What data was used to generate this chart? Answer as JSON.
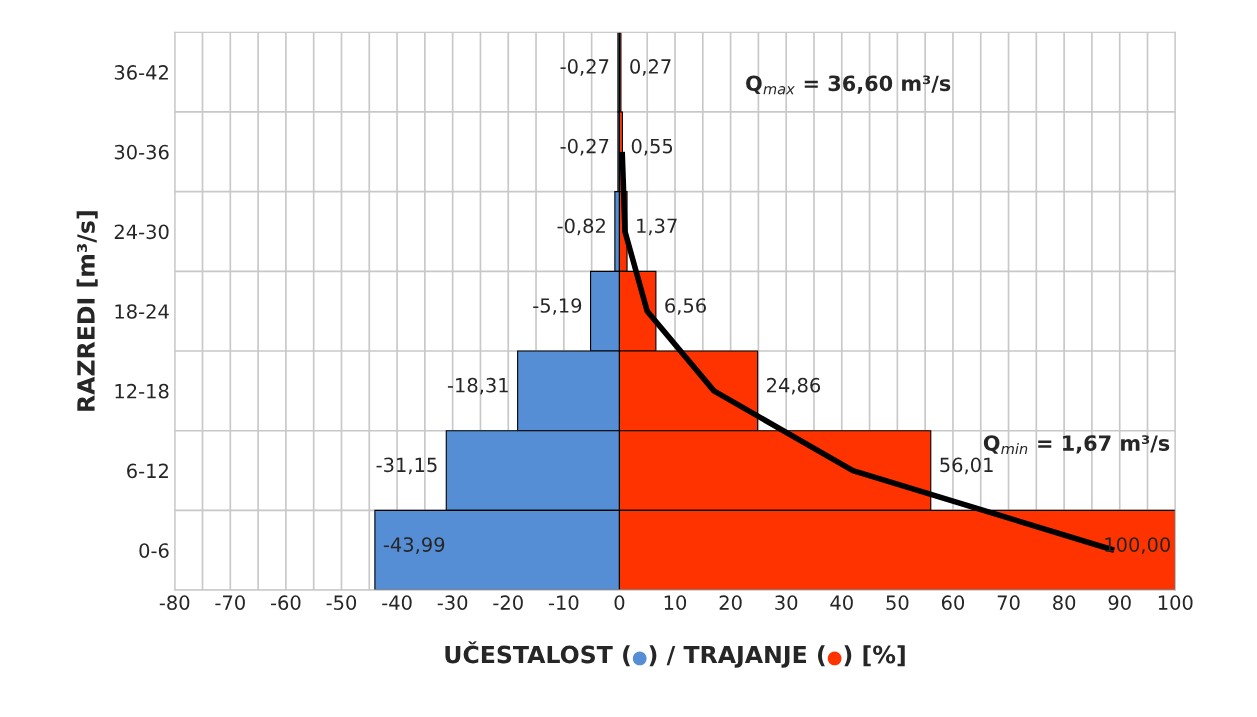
{
  "chart_data": {
    "type": "bar",
    "orientation": "horizontal",
    "stacked": true,
    "xlabel": "UČESTALOST (●) / TRAJANJE (●) [%]",
    "ylabel": "RAZREDI [m³/s]",
    "categories": [
      "36-42",
      "30-36",
      "24-30",
      "18-24",
      "12-18",
      "6-12",
      "0-6"
    ],
    "series": [
      {
        "color": "#558ed5",
        "values": [
          -0.27,
          -0.27,
          -0.82,
          -5.19,
          -18.31,
          -31.15,
          -43.99
        ],
        "value_labels": [
          "-0,27",
          "-0,27",
          "-0,82",
          "-5,19",
          "-18,31",
          "-31,15",
          "-43,99"
        ]
      },
      {
        "color": "#ff3300",
        "values": [
          0.27,
          0.55,
          1.37,
          6.56,
          24.86,
          56.01,
          100.0
        ],
        "value_labels": [
          "0,27",
          "0,55",
          "1,37",
          "6,56",
          "24,86",
          "56,01",
          "100,00"
        ]
      },
      {
        "type": "line",
        "color": "#000000",
        "values": [
          null,
          0.5,
          1,
          5,
          17,
          42,
          89
        ]
      }
    ],
    "xlim": [
      -80,
      100
    ],
    "xticks": [
      -80,
      -70,
      -60,
      -50,
      -40,
      -30,
      -20,
      -10,
      0,
      10,
      20,
      30,
      40,
      50,
      60,
      70,
      80,
      90,
      100
    ],
    "grid": true,
    "legend": false,
    "annotations": [
      "Q$_{max}$ = 36,60 m³/s",
      "Q$_{min}$ = 1,67 m³/s"
    ]
  }
}
